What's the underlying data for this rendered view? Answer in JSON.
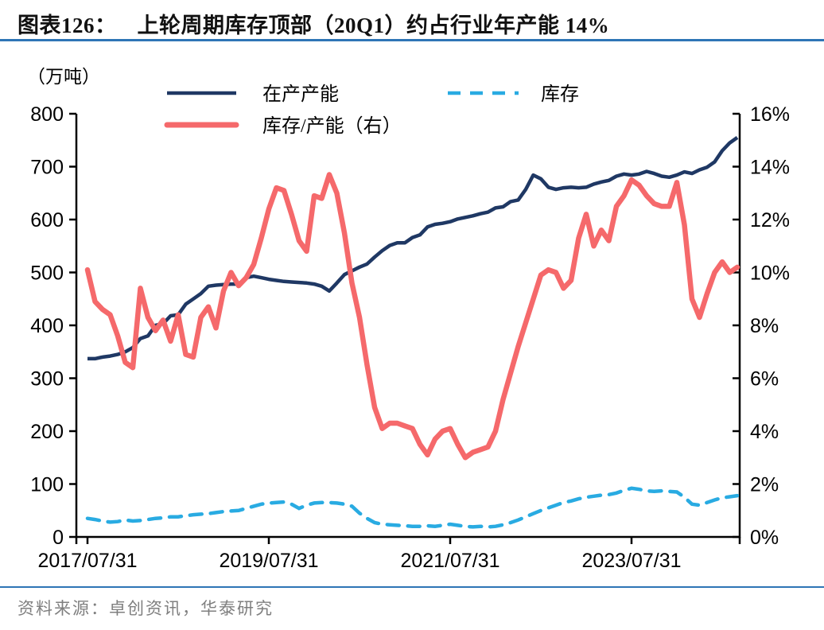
{
  "header": {
    "title_prefix": "图表126：",
    "title": "上轮周期库存顶部（20Q1）约占行业年产能 14%"
  },
  "chart": {
    "unit_label": "（万吨）",
    "legend": [
      {
        "label": "在产产能",
        "color": "#1f3864",
        "style": "solid"
      },
      {
        "label": "库存",
        "color": "#29abe2",
        "style": "dashed"
      },
      {
        "label": "库存/产能（右）",
        "color": "#f5696b",
        "style": "solid-thick"
      }
    ],
    "left_axis": {
      "ticks": [
        "800",
        "700",
        "600",
        "500",
        "400",
        "300",
        "200",
        "100",
        "0"
      ]
    },
    "right_axis": {
      "ticks": [
        "16%",
        "14%",
        "12%",
        "10%",
        "8%",
        "6%",
        "4%",
        "2%",
        "0%"
      ]
    },
    "x_axis": {
      "tick_labels": [
        "2017/07/31",
        "2019/07/31",
        "2021/07/31",
        "2023/07/31"
      ]
    },
    "colors": {
      "axis": "#000000",
      "rule_blue": "#2e75b6",
      "source_gray": "#7f7f7f"
    }
  },
  "chart_data": {
    "type": "line",
    "title": "上轮周期库存顶部（20Q1）约占行业年产能 14%",
    "xlabel": "",
    "ylabel_left": "万吨",
    "ylabel_right": "%",
    "ylim_left": [
      0,
      800
    ],
    "ylim_right": [
      0,
      16
    ],
    "grid": false,
    "legend_position": "top",
    "x": [
      "2017-07",
      "2017-08",
      "2017-09",
      "2017-10",
      "2017-11",
      "2017-12",
      "2018-01",
      "2018-02",
      "2018-03",
      "2018-04",
      "2018-05",
      "2018-06",
      "2018-07",
      "2018-08",
      "2018-09",
      "2018-10",
      "2018-11",
      "2018-12",
      "2019-01",
      "2019-02",
      "2019-03",
      "2019-04",
      "2019-05",
      "2019-06",
      "2019-07",
      "2019-08",
      "2019-09",
      "2019-10",
      "2019-11",
      "2019-12",
      "2020-01",
      "2020-02",
      "2020-03",
      "2020-04",
      "2020-05",
      "2020-06",
      "2020-07",
      "2020-08",
      "2020-09",
      "2020-10",
      "2020-11",
      "2020-12",
      "2021-01",
      "2021-02",
      "2021-03",
      "2021-04",
      "2021-05",
      "2021-06",
      "2021-07",
      "2021-08",
      "2021-09",
      "2021-10",
      "2021-11",
      "2021-12",
      "2022-01",
      "2022-02",
      "2022-03",
      "2022-04",
      "2022-05",
      "2022-06",
      "2022-07",
      "2022-08",
      "2022-09",
      "2022-10",
      "2022-11",
      "2022-12",
      "2023-01",
      "2023-02",
      "2023-03",
      "2023-04",
      "2023-05",
      "2023-06",
      "2023-07",
      "2023-08",
      "2023-09",
      "2023-10",
      "2023-11",
      "2023-12",
      "2024-01",
      "2024-02",
      "2024-03",
      "2024-04",
      "2024-05",
      "2024-06",
      "2024-07",
      "2024-08",
      "2024-09"
    ],
    "series": [
      {
        "name": "在产产能",
        "axis": "left",
        "unit": "万吨",
        "color": "#1f3864",
        "values": [
          337,
          337,
          340,
          342,
          345,
          350,
          358,
          375,
          380,
          400,
          403,
          418,
          420,
          440,
          450,
          460,
          474,
          476,
          477,
          478,
          478,
          490,
          493,
          490,
          487,
          485,
          483,
          482,
          481,
          480,
          478,
          474,
          465,
          480,
          496,
          503,
          510,
          516,
          529,
          541,
          551,
          556,
          556,
          566,
          571,
          586,
          591,
          593,
          596,
          601,
          604,
          607,
          611,
          614,
          622,
          624,
          634,
          637,
          657,
          684,
          677,
          661,
          657,
          660,
          661,
          660,
          661,
          667,
          671,
          674,
          682,
          686,
          684,
          686,
          691,
          687,
          682,
          680,
          684,
          690,
          687,
          694,
          699,
          709,
          730,
          745,
          755
        ]
      },
      {
        "name": "库存",
        "axis": "left",
        "unit": "万吨",
        "color": "#29abe2",
        "values": [
          35,
          33,
          30,
          28,
          29,
          32,
          30,
          31,
          33,
          35,
          36,
          38,
          38,
          40,
          42,
          43,
          44,
          46,
          48,
          49,
          50,
          54,
          58,
          62,
          64,
          65,
          66,
          62,
          54,
          60,
          64,
          65,
          65,
          64,
          62,
          58,
          45,
          35,
          27,
          24,
          23,
          22,
          21,
          20,
          20,
          21,
          20,
          22,
          24,
          22,
          20,
          19,
          20,
          19,
          20,
          23,
          27,
          32,
          38,
          44,
          50,
          55,
          60,
          65,
          68,
          72,
          75,
          77,
          79,
          80,
          83,
          88,
          92,
          90,
          87,
          86,
          87,
          86,
          85,
          75,
          62,
          60,
          65,
          70,
          74,
          76,
          78
        ]
      },
      {
        "name": "库存/产能（右）",
        "axis": "right",
        "unit": "%",
        "color": "#f5696b",
        "values": [
          10.1,
          8.9,
          8.6,
          8.4,
          7.6,
          6.6,
          6.4,
          9.4,
          8.3,
          7.8,
          8.2,
          7.4,
          8.4,
          6.9,
          6.8,
          8.3,
          8.7,
          7.9,
          9.3,
          10.0,
          9.5,
          9.8,
          10.3,
          11.3,
          12.4,
          13.2,
          13.1,
          12.2,
          11.2,
          10.8,
          12.9,
          12.8,
          13.7,
          13.0,
          11.5,
          9.6,
          8.3,
          6.5,
          4.9,
          4.1,
          4.3,
          4.3,
          4.2,
          4.1,
          3.5,
          3.1,
          3.7,
          4.0,
          4.1,
          3.5,
          3.0,
          3.2,
          3.3,
          3.4,
          4.0,
          5.2,
          6.2,
          7.2,
          8.1,
          9.0,
          9.9,
          10.1,
          10.0,
          9.4,
          9.7,
          11.3,
          12.2,
          11.0,
          11.6,
          11.2,
          12.5,
          12.9,
          13.5,
          13.3,
          12.9,
          12.6,
          12.5,
          12.5,
          13.4,
          11.8,
          9.0,
          8.3,
          9.2,
          10.0,
          10.4,
          10.0,
          10.2
        ]
      }
    ]
  },
  "footer": {
    "source": "资料来源：卓创资讯，华泰研究"
  }
}
